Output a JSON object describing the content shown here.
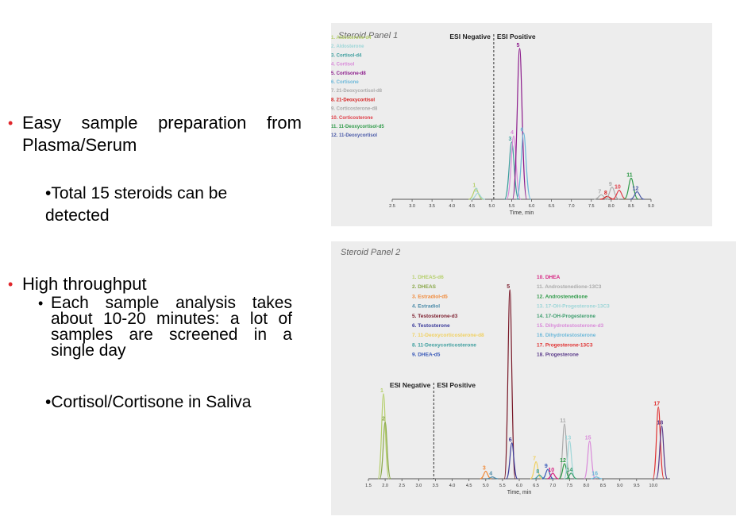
{
  "bullets": {
    "b1_w1": "Easy",
    "b1_w2": "sample",
    "b1_w3": "preparation",
    "b1_w4": "from",
    "b1_line2": "Plasma/Serum",
    "b2": "•Total 15 steroids can be detected",
    "b3": "High throughput",
    "b4": "Each sample analysis takes about 10-20 minutes: a lot of samples are screened in a single day",
    "b5": "•Cortisol/Cortisone in Saliva"
  },
  "chart_data": [
    {
      "type": "line",
      "title": "Steroid Panel 1",
      "xlabel": "Time, min",
      "xlim": [
        2.5,
        9.0
      ],
      "x_ticks": [
        "2.5",
        "3.0",
        "3.5",
        "4.0",
        "4.5",
        "5.0",
        "5.5",
        "6.0",
        "6.5",
        "7.0",
        "7.5",
        "8.0",
        "8.5",
        "9.0"
      ],
      "region_labels": [
        "ESI Negative",
        "ESI Positive"
      ],
      "divider_x": 5.05,
      "legend": [
        {
          "label": "1.  Aldosterone-d4",
          "color": "#b5cf6b"
        },
        {
          "label": "2.  Aldosterone",
          "color": "#9ed6d8"
        },
        {
          "label": "3.  Cortisol-d4",
          "color": "#3d9e9e"
        },
        {
          "label": "4.  Cortisol",
          "color": "#d98ad9"
        },
        {
          "label": "5.  Cortisone-d8",
          "color": "#8b1a8b"
        },
        {
          "label": "6.  Cortisone",
          "color": "#6cb8d9"
        },
        {
          "label": "7.  21-Deoxycortisol-d8",
          "color": "#aaaaaa"
        },
        {
          "label": "8.  21-Deoxycortisol",
          "color": "#d62020"
        },
        {
          "label": "9.  Corticosterone-d8",
          "color": "#aaaaaa"
        },
        {
          "label": "10. Corticosterone",
          "color": "#e0404a"
        },
        {
          "label": "11. 11-Deoxycortisol-d5",
          "color": "#2e9a48"
        },
        {
          "label": "12. 11-Deoxycortisol",
          "color": "#4a5aa8"
        }
      ],
      "peaks": [
        {
          "label": "1",
          "x": 4.6,
          "height": 0.07,
          "color": "#b5cf6b"
        },
        {
          "label": "2",
          "x": 4.65,
          "height": 0.04,
          "color": "#9ed6d8"
        },
        {
          "label": "3",
          "x": 5.5,
          "height": 0.38,
          "color": "#3d9e9e"
        },
        {
          "label": "4",
          "x": 5.55,
          "height": 0.42,
          "color": "#d98ad9"
        },
        {
          "label": "5",
          "x": 5.7,
          "height": 1.0,
          "color": "#8b1a8b"
        },
        {
          "label": "6",
          "x": 5.8,
          "height": 0.44,
          "color": "#6cb8d9"
        },
        {
          "label": "7",
          "x": 7.75,
          "height": 0.03,
          "color": "#aaaaaa"
        },
        {
          "label": "8",
          "x": 7.9,
          "height": 0.02,
          "color": "#d62020"
        },
        {
          "label": "9",
          "x": 8.02,
          "height": 0.08,
          "color": "#aaaaaa"
        },
        {
          "label": "10",
          "x": 8.2,
          "height": 0.06,
          "color": "#e0404a"
        },
        {
          "label": "11",
          "x": 8.5,
          "height": 0.14,
          "color": "#2e9a48"
        },
        {
          "label": "12",
          "x": 8.65,
          "height": 0.05,
          "color": "#4a5aa8"
        }
      ]
    },
    {
      "type": "line",
      "title": "Steroid Panel 2",
      "xlabel": "Time, min",
      "xlim": [
        1.5,
        10.5
      ],
      "x_ticks": [
        "1.5",
        "2.0",
        "2.5",
        "3.0",
        "3.5",
        "4.0",
        "4.5",
        "5.0",
        "5.5",
        "6.0",
        "6.5",
        "7.0",
        "7.5",
        "8.0",
        "8.5",
        "9.0",
        "9.5",
        "10.0"
      ],
      "region_labels": [
        "ESI Negative",
        "ESI Positive"
      ],
      "divider_x": 3.45,
      "legend": [
        {
          "label": "1.  DHEAS-d6",
          "color": "#b5cf6b"
        },
        {
          "label": "2.  DHEAS",
          "color": "#8aa84a"
        },
        {
          "label": "3.  Estradiol-d5",
          "color": "#f08a3a"
        },
        {
          "label": "4.  Estradiol",
          "color": "#4a8aa8"
        },
        {
          "label": "5.  Testosterone-d3",
          "color": "#7a1a2a"
        },
        {
          "label": "6.  Testosterone",
          "color": "#3a3a9a"
        },
        {
          "label": "7.  11-Deoxycorticosterone-d8",
          "color": "#f0d060"
        },
        {
          "label": "8.  11-Deoxycorticosterone",
          "color": "#3d9e9e"
        },
        {
          "label": "9.  DHEA-d5",
          "color": "#3a5ab8"
        },
        {
          "label": "10. DHEA",
          "color": "#d62080"
        },
        {
          "label": "11. Androstenedione-13C3",
          "color": "#aaaaaa"
        },
        {
          "label": "12. Androstenedione",
          "color": "#2e9a48"
        },
        {
          "label": "13. 17-OH-Progesterone-13C3",
          "color": "#9ed6d8"
        },
        {
          "label": "14. 17-OH-Progesterone",
          "color": "#3d9e6e"
        },
        {
          "label": "15. Dihydrotestosterone-d3",
          "color": "#d98ad9"
        },
        {
          "label": "16. Dihydrotestosterone",
          "color": "#6cb8d9"
        },
        {
          "label": "17. Progesterone-13C3",
          "color": "#e03030"
        },
        {
          "label": "18. Progesterone",
          "color": "#5a3a8a"
        }
      ],
      "peaks": [
        {
          "label": "1",
          "x": 1.95,
          "height": 0.45,
          "color": "#b5cf6b"
        },
        {
          "label": "2",
          "x": 2.0,
          "height": 0.3,
          "color": "#8aa84a"
        },
        {
          "label": "3",
          "x": 5.0,
          "height": 0.04,
          "color": "#f08a3a"
        },
        {
          "label": "4",
          "x": 5.2,
          "height": 0.01,
          "color": "#4a8aa8"
        },
        {
          "label": "5",
          "x": 5.72,
          "height": 1.0,
          "color": "#7a1a2a"
        },
        {
          "label": "6",
          "x": 5.78,
          "height": 0.19,
          "color": "#3a3a9a"
        },
        {
          "label": "7",
          "x": 6.5,
          "height": 0.09,
          "color": "#f0d060"
        },
        {
          "label": "8",
          "x": 6.6,
          "height": 0.02,
          "color": "#3d9e9e"
        },
        {
          "label": "9",
          "x": 6.85,
          "height": 0.05,
          "color": "#3a5ab8"
        },
        {
          "label": "10",
          "x": 7.0,
          "height": 0.03,
          "color": "#d62080"
        },
        {
          "label": "11",
          "x": 7.35,
          "height": 0.29,
          "color": "#aaaaaa"
        },
        {
          "label": "12",
          "x": 7.35,
          "height": 0.08,
          "color": "#2e9a48"
        },
        {
          "label": "13",
          "x": 7.5,
          "height": 0.2,
          "color": "#9ed6d8"
        },
        {
          "label": "14",
          "x": 7.55,
          "height": 0.03,
          "color": "#3d9e6e"
        },
        {
          "label": "15",
          "x": 8.1,
          "height": 0.2,
          "color": "#d98ad9"
        },
        {
          "label": "16",
          "x": 8.3,
          "height": 0.01,
          "color": "#6cb8d9"
        },
        {
          "label": "17",
          "x": 10.15,
          "height": 0.38,
          "color": "#e03030"
        },
        {
          "label": "18",
          "x": 10.25,
          "height": 0.28,
          "color": "#5a3a8a"
        }
      ]
    }
  ]
}
